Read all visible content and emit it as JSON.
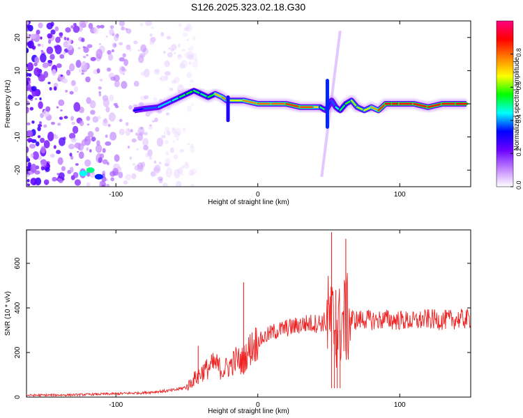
{
  "title": "S126.2025.323.02.18.G30",
  "chart_data": [
    {
      "type": "heatmap",
      "name": "spectrogram",
      "xlabel": "Height of straight line (km)",
      "ylabel": "Frequency (Hz)",
      "xlim": [
        -163,
        150
      ],
      "ylim": [
        -25,
        25
      ],
      "x_ticks": [
        -100,
        0,
        100
      ],
      "y_ticks": [
        -20,
        -10,
        0,
        10,
        20
      ],
      "colorbar": {
        "label": "Normalized spectral amplitude",
        "range": [
          0,
          1
        ],
        "ticks": [
          0.0,
          0.2,
          0.4,
          0.6,
          0.8
        ],
        "tick_labels": [
          "0.0",
          "0.2",
          "0.4",
          "0.6",
          "0.8"
        ],
        "colormap": [
          "#ffffff",
          "#c080ff",
          "#6a00ff",
          "#0000ff",
          "#00ffff",
          "#00ff00",
          "#ffff00",
          "#ff8000",
          "#ff0000",
          "#ff0080"
        ]
      },
      "ridge": {
        "x": [
          -87,
          -80,
          -70,
          -60,
          -55,
          -50,
          -45,
          -40,
          -35,
          -30,
          -25,
          -22,
          -20,
          -10,
          0,
          10,
          20,
          30,
          40,
          44,
          48,
          52,
          55,
          58,
          62,
          66,
          70,
          75,
          80,
          85,
          90,
          95,
          100,
          110,
          120,
          130,
          140,
          147
        ],
        "y": [
          -2,
          -1.5,
          -1,
          1,
          2,
          3,
          4,
          3,
          2,
          3,
          2,
          1,
          1,
          1,
          0,
          0,
          0,
          -1,
          -1,
          -1,
          -2,
          1,
          -1,
          -2,
          0,
          1,
          -1,
          -2,
          -1,
          -2,
          0,
          0,
          0,
          0,
          -1,
          0,
          0,
          0
        ],
        "amplitude": [
          0.3,
          0.35,
          0.4,
          0.45,
          0.5,
          0.55,
          0.55,
          0.5,
          0.5,
          0.6,
          0.85,
          0.7,
          0.6,
          0.7,
          0.85,
          0.75,
          0.85,
          0.85,
          0.8,
          0.6,
          0.4,
          0.3,
          0.45,
          0.5,
          0.55,
          0.6,
          0.65,
          0.6,
          0.7,
          0.8,
          0.9,
          0.9,
          0.9,
          0.85,
          0.9,
          0.85,
          0.9,
          0.9
        ]
      }
    },
    {
      "type": "line",
      "name": "snr",
      "xlabel": "Height of straight line (km)",
      "ylabel": "SNR (10 * v/v)",
      "xlim": [
        -163,
        150
      ],
      "ylim": [
        0,
        750
      ],
      "x_ticks": [
        -100,
        0,
        100
      ],
      "y_ticks": [
        0,
        200,
        400,
        600
      ],
      "series": [
        {
          "name": "SNR",
          "color": "#ee2222",
          "x": [
            -163,
            -130,
            -100,
            -80,
            -70,
            -60,
            -50,
            -45,
            -40,
            -35,
            -30,
            -25,
            -20,
            -15,
            -12,
            -10,
            -8,
            -5,
            0,
            5,
            10,
            15,
            20,
            25,
            30,
            35,
            40,
            45,
            48,
            50,
            52,
            54,
            56,
            58,
            60,
            62,
            64,
            66,
            68,
            70,
            75,
            80,
            85,
            90,
            95,
            100,
            110,
            120,
            130,
            140,
            150
          ],
          "y": [
            8,
            10,
            15,
            20,
            25,
            30,
            45,
            80,
            110,
            130,
            150,
            120,
            140,
            170,
            160,
            170,
            190,
            220,
            250,
            270,
            290,
            300,
            310,
            315,
            325,
            330,
            330,
            335,
            340,
            350,
            340,
            330,
            300,
            320,
            340,
            345,
            350,
            355,
            345,
            345,
            350,
            345,
            345,
            350,
            345,
            345,
            340,
            350,
            345,
            350,
            350
          ]
        }
      ],
      "spikes": [
        {
          "x": -42,
          "y": 230
        },
        {
          "x": -10,
          "y": 515
        },
        {
          "x": 52,
          "y": 740
        },
        {
          "x": 55,
          "y": 480
        },
        {
          "x": 62,
          "y": 710
        }
      ]
    }
  ]
}
